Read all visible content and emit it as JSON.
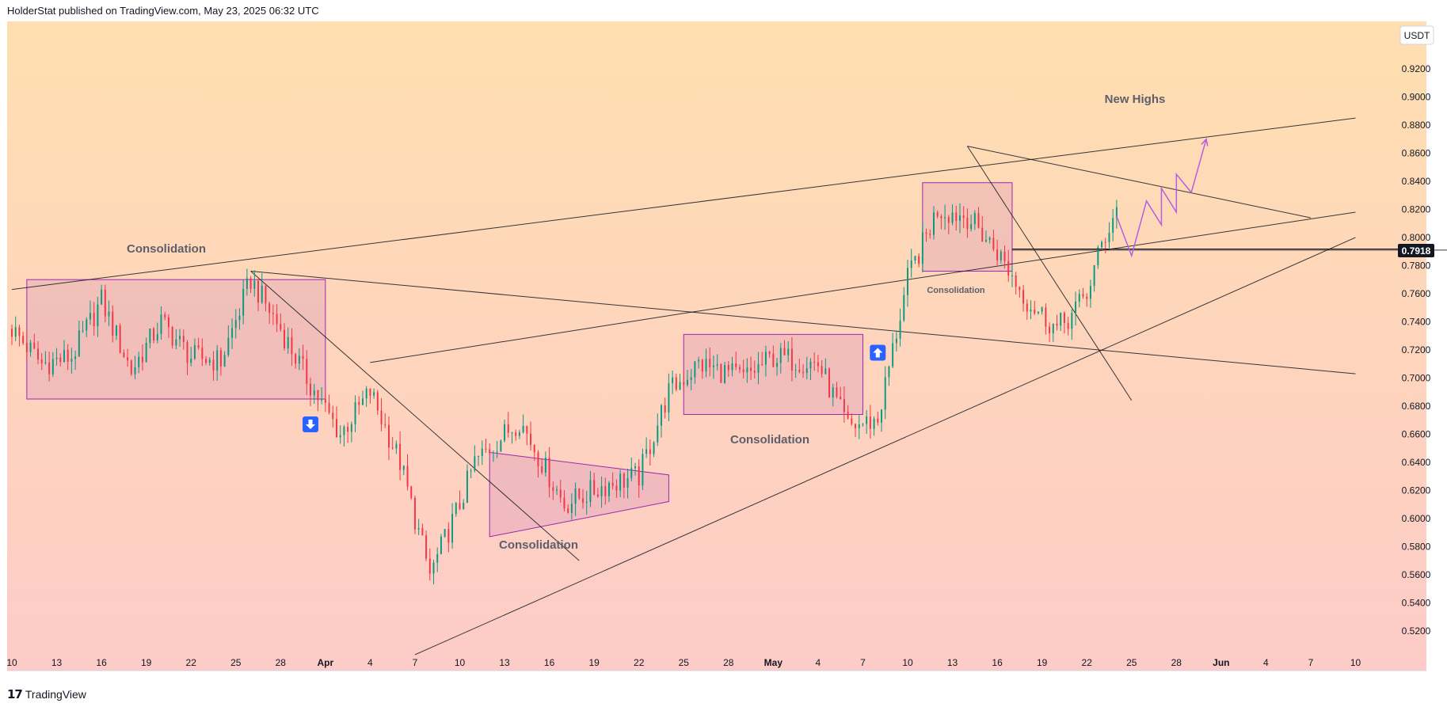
{
  "header": {
    "attribution": "HolderStat published on TradingView.com, May 23, 2025 06:32 UTC"
  },
  "footer": {
    "brand_mark": "17",
    "brand_name": "TradingView"
  },
  "colors": {
    "bull": "#089981",
    "bear": "#f23645",
    "pattern": "#9c27b0",
    "projection": "#b45ee0",
    "signal": "#2962ff",
    "bg_top": "#ffdfb0",
    "bg_bottom": "#fdcbc8",
    "trendline": "#131722"
  },
  "chart_data": {
    "type": "candlestick",
    "currency": "USDT",
    "last_price": "0.7918",
    "x_ticks": [
      "10",
      "13",
      "16",
      "19",
      "22",
      "25",
      "28",
      "Apr",
      "4",
      "7",
      "10",
      "13",
      "16",
      "19",
      "22",
      "25",
      "28",
      "May",
      "4",
      "7",
      "10",
      "13",
      "16",
      "19",
      "22",
      "25",
      "28",
      "Jun",
      "4",
      "7",
      "10"
    ],
    "y_ticks": [
      "0.9200",
      "0.9000",
      "0.8800",
      "0.8600",
      "0.8400",
      "0.8200",
      "0.8000",
      "0.7800",
      "0.7600",
      "0.7400",
      "0.7200",
      "0.7000",
      "0.6800",
      "0.6600",
      "0.6400",
      "0.6200",
      "0.6000",
      "0.5800",
      "0.5600",
      "0.5400",
      "0.5200"
    ],
    "annotations": {
      "consolidation_1": "Consolidation",
      "consolidation_2": "Consolidation",
      "consolidation_3": "Consolidation",
      "consolidation_4": "Consolidation",
      "new_highs": "New Highs"
    },
    "anchors": [
      [
        "2025-03-10",
        0.735
      ],
      [
        "2025-03-12",
        0.71
      ],
      [
        "2025-03-14",
        0.715
      ],
      [
        "2025-03-16",
        0.755
      ],
      [
        "2025-03-18",
        0.705
      ],
      [
        "2025-03-20",
        0.74
      ],
      [
        "2025-03-22",
        0.715
      ],
      [
        "2025-03-24",
        0.712
      ],
      [
        "2025-03-26",
        0.77
      ],
      [
        "2025-03-28",
        0.735
      ],
      [
        "2025-03-30",
        0.695
      ],
      [
        "2025-04-01",
        0.66
      ],
      [
        "2025-04-03",
        0.69
      ],
      [
        "2025-04-05",
        0.64
      ],
      [
        "2025-04-07",
        0.56
      ],
      [
        "2025-04-09",
        0.61
      ],
      [
        "2025-04-10",
        0.64
      ],
      [
        "2025-04-13",
        0.67
      ],
      [
        "2025-04-16",
        0.61
      ],
      [
        "2025-04-19",
        0.625
      ],
      [
        "2025-04-21",
        0.63
      ],
      [
        "2025-04-23",
        0.69
      ],
      [
        "2025-04-25",
        0.71
      ],
      [
        "2025-04-28",
        0.7
      ],
      [
        "2025-04-30",
        0.715
      ],
      [
        "2025-05-03",
        0.71
      ],
      [
        "2025-05-05",
        0.665
      ],
      [
        "2025-05-07",
        0.67
      ],
      [
        "2025-05-09",
        0.77
      ],
      [
        "2025-05-11",
        0.82
      ],
      [
        "2025-05-13",
        0.815
      ],
      [
        "2025-05-15",
        0.79
      ],
      [
        "2025-05-17",
        0.755
      ],
      [
        "2025-05-19",
        0.735
      ],
      [
        "2025-05-20",
        0.745
      ],
      [
        "2025-05-21",
        0.76
      ],
      [
        "2025-05-22",
        0.795
      ],
      [
        "2025-05-23",
        0.821
      ]
    ],
    "projection": [
      [
        "2025-05-23",
        0.815
      ],
      [
        "2025-05-24",
        0.787
      ],
      [
        "2025-05-25",
        0.826
      ],
      [
        "2025-05-26",
        0.809
      ],
      [
        "2025-05-26",
        0.835
      ],
      [
        "2025-05-27",
        0.818
      ],
      [
        "2025-05-27",
        0.845
      ],
      [
        "2025-05-28",
        0.832
      ],
      [
        "2025-05-29",
        0.87
      ]
    ],
    "trendlines": [
      [
        [
          "2025-03-10",
          0.763
        ],
        [
          "2025-06-08",
          0.885
        ]
      ],
      [
        [
          "2025-03-26",
          0.776
        ],
        [
          "2025-06-08",
          0.703
        ]
      ],
      [
        [
          "2025-03-26",
          0.776
        ],
        [
          "2025-04-17",
          0.57
        ]
      ],
      [
        [
          "2025-04-03",
          0.711
        ],
        [
          "2025-04-24",
          0.746
        ]
      ],
      [
        [
          "2025-04-24",
          0.746
        ],
        [
          "2025-06-08",
          0.818
        ]
      ],
      [
        [
          "2025-04-06",
          0.503
        ],
        [
          "2025-06-08",
          0.8
        ]
      ],
      [
        [
          "2025-05-13",
          0.865
        ],
        [
          "2025-06-05",
          0.814
        ]
      ],
      [
        [
          "2025-05-13",
          0.865
        ],
        [
          "2025-05-24",
          0.684
        ]
      ],
      [
        [
          "2025-05-16",
          0.791
        ],
        [
          "2025-06-30",
          0.791
        ]
      ]
    ],
    "zones": [
      {
        "x0": "2025-03-11",
        "x1": "2025-03-31",
        "y0": 0.685,
        "y1": 0.77
      },
      {
        "x0": "2025-04-24",
        "x1": "2025-05-06",
        "y0": 0.674,
        "y1": 0.731
      },
      {
        "x0": "2025-05-10",
        "x1": "2025-05-16",
        "y0": 0.776,
        "y1": 0.839
      }
    ],
    "triangle": [
      [
        "2025-04-11",
        0.647
      ],
      [
        "2025-04-23",
        0.631
      ],
      [
        "2025-04-23",
        0.612
      ],
      [
        "2025-04-11",
        0.587
      ]
    ],
    "signals": [
      {
        "date": "2025-03-30",
        "price": 0.667,
        "dir": "down"
      },
      {
        "date": "2025-05-07",
        "price": 0.718,
        "dir": "up"
      }
    ]
  }
}
